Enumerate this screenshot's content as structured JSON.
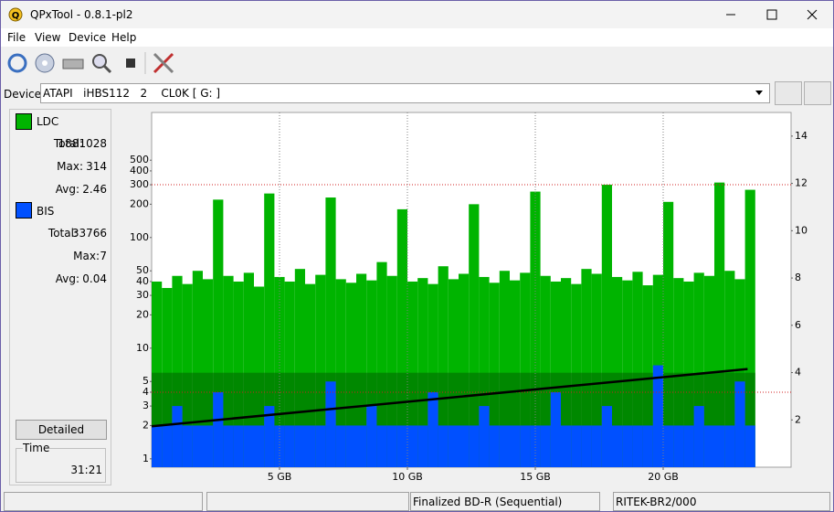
{
  "window": {
    "title": "QPxTool - 0.8.1-pl2"
  },
  "menu": [
    "File",
    "View",
    "Device",
    "Help"
  ],
  "device": {
    "label": "Device:",
    "value": "ATAPI   iHBS112   2    CL0K [ G: ]"
  },
  "stats": [
    {
      "rows": [
        {
          "label": "Total:",
          "value": 1881028
        },
        {
          "label": "Max:",
          "value": 314
        },
        {
          "label": "Avg:",
          "value": 2.46
        }
      ]
    },
    {
      "rows": [
        {
          "label": "Total:",
          "value": 33766
        },
        {
          "label": "Max:",
          "value": 7
        },
        {
          "label": "Avg:",
          "value": 0.04
        }
      ]
    }
  ],
  "button": "Detailed",
  "time": {
    "label": "Time",
    "value": "31:21"
  },
  "status": {
    "media": "Finalized BD-R (Sequential)",
    "media_id": "RITEK-BR2/000"
  },
  "chart_data": {
    "type": "bar",
    "xlim": [
      0,
      25
    ],
    "xticks": [
      {
        "value": 5,
        "label": "5 GB"
      },
      {
        "value": 10,
        "label": "10 GB"
      },
      {
        "value": 15,
        "label": "15 GB"
      },
      {
        "value": 20,
        "label": "20 GB"
      }
    ],
    "ylim": [
      0.84,
      1350
    ],
    "log_y": true,
    "yticks": [
      1,
      2,
      3,
      4,
      5,
      10,
      20,
      30,
      40,
      50,
      100,
      200,
      300,
      400,
      500
    ],
    "y2lim": [
      0,
      15
    ],
    "y2ticks": [
      2,
      4,
      6,
      8,
      10,
      12,
      14
    ],
    "grid": true,
    "threshold_lines": [
      300,
      4
    ],
    "x": [
      0,
      0.4,
      0.8,
      1.2,
      1.6,
      2,
      2.4,
      2.8,
      3.2,
      3.6,
      4,
      4.4,
      4.8,
      5.2,
      5.6,
      6,
      6.4,
      6.8,
      7.2,
      7.6,
      8,
      8.4,
      8.8,
      9.2,
      9.6,
      10,
      10.4,
      10.8,
      11.2,
      11.6,
      12,
      12.4,
      12.8,
      13.2,
      13.6,
      14,
      14.4,
      14.8,
      15.2,
      15.6,
      16,
      16.4,
      16.8,
      17.2,
      17.6,
      18,
      18.4,
      18.8,
      19.2,
      19.6,
      20,
      20.4,
      20.8,
      21.2,
      21.6,
      22,
      22.4,
      22.8,
      23.2
    ],
    "series": [
      {
        "name": "LDC",
        "color": "#00b400",
        "values": [
          40,
          35,
          45,
          38,
          50,
          42,
          220,
          45,
          40,
          48,
          36,
          250,
          44,
          40,
          52,
          38,
          46,
          230,
          42,
          39,
          47,
          41,
          60,
          45,
          180,
          40,
          43,
          38,
          55,
          42,
          47,
          200,
          44,
          39,
          50,
          41,
          48,
          260,
          45,
          40,
          43,
          38,
          52,
          47,
          300,
          44,
          41,
          49,
          37,
          46,
          210,
          43,
          40,
          48,
          45,
          314,
          50,
          42,
          270
        ]
      },
      {
        "name": "BIS",
        "color": "#0050ff",
        "values": [
          2,
          2,
          3,
          2,
          2,
          2,
          4,
          2,
          2,
          2,
          2,
          3,
          2,
          2,
          2,
          2,
          2,
          5,
          2,
          2,
          2,
          3,
          2,
          2,
          2,
          2,
          2,
          4,
          2,
          2,
          2,
          2,
          3,
          2,
          2,
          2,
          2,
          2,
          2,
          4,
          2,
          2,
          2,
          2,
          3,
          2,
          2,
          2,
          2,
          7,
          2,
          2,
          2,
          3,
          2,
          2,
          2,
          5,
          2
        ]
      }
    ],
    "speed": {
      "x": [
        0,
        23.3
      ],
      "values": [
        1.73,
        4.15
      ],
      "axis": "y2",
      "color": "#000000"
    }
  }
}
